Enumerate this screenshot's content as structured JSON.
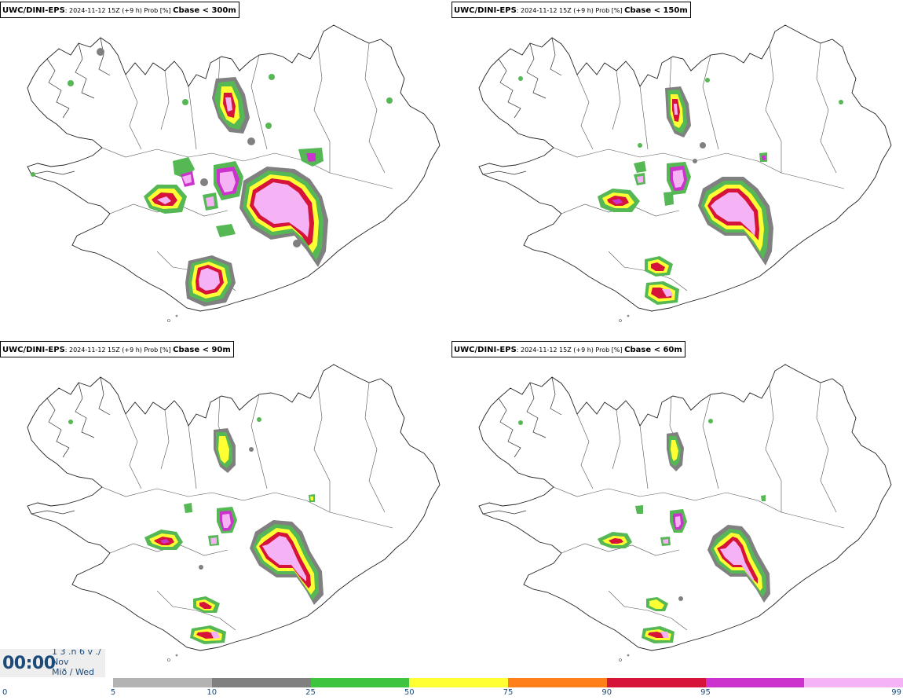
{
  "panels": [
    {
      "model": "UWC/DINI-EPS",
      "meta": ": 2024-11-12 15Z (+9 h) Prob [%] ",
      "param": "Cbase < 300m"
    },
    {
      "model": "UWC/DINI-EPS",
      "meta": ": 2024-11-12 15Z (+9 h) Prob [%] ",
      "param": "Cbase < 150m"
    },
    {
      "model": "UWC/DINI-EPS",
      "meta": ": 2024-11-12 15Z (+9 h) Prob [%] ",
      "param": "Cbase < 90m"
    },
    {
      "model": "UWC/DINI-EPS",
      "meta": ": 2024-11-12 15Z (+9 h) Prob [%] ",
      "param": "Cbase < 60m"
    }
  ],
  "time": {
    "clock": "00:00",
    "line1": "1 3 .n 6 v ./",
    "line2": "Nov",
    "line3": "Mið / Wed"
  },
  "legend": {
    "labels": [
      "0",
      "5",
      "10",
      "25",
      "50",
      "75",
      "90",
      "95",
      "99"
    ],
    "colors": [
      "#b3b3b3",
      "#808080",
      "#3ec43e",
      "#ffff33",
      "#ff7f1a",
      "#d6143a",
      "#cc33cc",
      "#f5b3f5"
    ],
    "text_color": "#1c4a78"
  },
  "map_colors": {
    "coast": "#000000",
    "p5": "#b3b3b3",
    "p10": "#808080",
    "p25": "#55b855",
    "p50": "#ffff33",
    "p75": "#ff7f1a",
    "p90": "#d6143a",
    "p95": "#cc33cc",
    "p99": "#f5b3f5"
  }
}
